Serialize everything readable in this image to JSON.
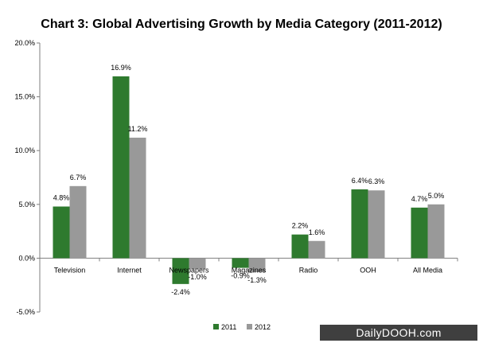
{
  "chart_data": {
    "type": "bar",
    "title": "Chart 3: Global Advertising Growth by Media Category (2011-2012)",
    "categories": [
      "Television",
      "Internet",
      "Newspapers",
      "Magazines",
      "Radio",
      "OOH",
      "All Media"
    ],
    "series": [
      {
        "name": "2011",
        "color": "#2e7a2e",
        "values": [
          4.8,
          16.9,
          -2.4,
          -0.9,
          2.2,
          6.4,
          4.7
        ],
        "labels": [
          "4.8%",
          "16.9%",
          "-2.4%",
          "-0.9%",
          "2.2%",
          "6.4%",
          "4.7%"
        ]
      },
      {
        "name": "2012",
        "color": "#999999",
        "values": [
          6.7,
          11.2,
          -1.0,
          -1.3,
          1.6,
          6.3,
          5.0
        ],
        "labels": [
          "6.7%",
          "11.2%",
          "-1.0%",
          "-1.3%",
          "1.6%",
          "6.3%",
          "5.0%"
        ]
      }
    ],
    "ylim": [
      -5,
      20
    ],
    "yticks": [
      20,
      15,
      10,
      5,
      0,
      -5
    ],
    "ytick_labels": [
      "20.0%",
      "15.0%",
      "10.0%",
      "5.0%",
      "0.0%",
      "-5.0%"
    ],
    "xlabel": "",
    "ylabel": "",
    "legend_position": "bottom"
  },
  "watermark": "DailyDOOH.com"
}
